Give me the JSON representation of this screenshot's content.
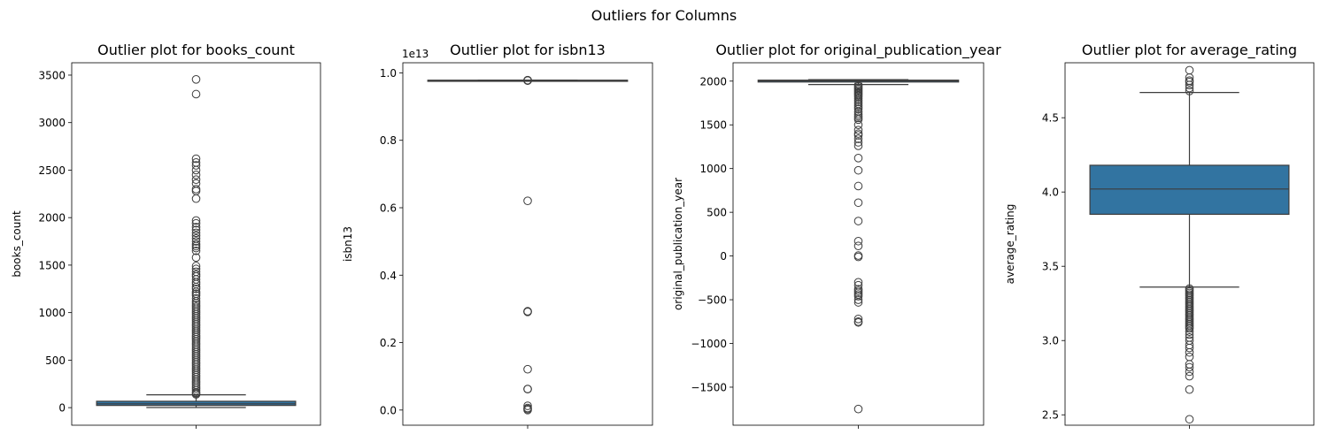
{
  "suptitle": "Outliers for Columns",
  "colors": {
    "box_fill": "#3274a1",
    "line": "#3d3d3d",
    "frame": "#000000"
  },
  "chart_data": [
    {
      "type": "box",
      "title": "Outlier plot for books_count",
      "ylabel": "books_count",
      "ylim": [
        -185,
        3630
      ],
      "yticks": [
        0,
        500,
        1000,
        1500,
        2000,
        2500,
        3000,
        3500
      ],
      "ytick_labels": [
        "0",
        "500",
        "1000",
        "1500",
        "2000",
        "2500",
        "3000",
        "3500"
      ],
      "offset_text": "",
      "box": {
        "whisker_low": 1,
        "q1": 23,
        "median": 40,
        "q3": 67,
        "whisker_high": 135
      },
      "outliers": [
        3455,
        3300,
        2620,
        2580,
        2550,
        2500,
        2450,
        2400,
        2360,
        2300,
        2280,
        2200,
        1970,
        1940,
        1900,
        1870,
        1840,
        1810,
        1780,
        1750,
        1720,
        1700,
        1680,
        1650,
        1580,
        1490,
        1460,
        1430,
        1400,
        1380,
        1350,
        1320,
        1300,
        1270,
        1250,
        1220,
        1200,
        1180,
        1150,
        1120,
        1100,
        1080,
        1060,
        1040,
        1020,
        1000,
        980,
        960,
        940,
        920,
        900,
        880,
        860,
        840,
        820,
        800,
        780,
        760,
        740,
        720,
        700,
        680,
        660,
        640,
        620,
        600,
        580,
        560,
        540,
        520,
        500,
        480,
        460,
        440,
        420,
        400,
        380,
        360,
        340,
        320,
        300,
        280,
        260,
        240,
        220,
        200,
        180,
        160,
        150,
        140
      ]
    },
    {
      "type": "box",
      "title": "Outlier plot for isbn13",
      "ylabel": "isbn13",
      "ylim": [
        -0.045,
        1.03
      ],
      "yticks": [
        0.0,
        0.2,
        0.4,
        0.6,
        0.8,
        1.0
      ],
      "ytick_labels": [
        "0.0",
        "0.2",
        "0.4",
        "0.6",
        "0.8",
        "1.0"
      ],
      "offset_text": "1e13",
      "box": {
        "whisker_low": 0.978,
        "q1": 0.978,
        "median": 0.978,
        "q3": 0.9781,
        "whisker_high": 0.9781
      },
      "outliers": [
        0.9785,
        0.978,
        0.9775,
        0.977,
        0.6205,
        0.293,
        0.292,
        0.291,
        0.121,
        0.0625,
        0.062,
        0.0125,
        0.006,
        0.003,
        0.0
      ]
    },
    {
      "type": "box",
      "title": "Outlier plot for original_publication_year",
      "ylabel": "original_publication_year",
      "ylim": [
        -1935,
        2210
      ],
      "yticks": [
        -1500,
        -1000,
        -500,
        0,
        500,
        1000,
        1500,
        2000
      ],
      "ytick_labels": [
        "−1500",
        "−1000",
        "−500",
        "0",
        "500",
        "1000",
        "1500",
        "2000"
      ],
      "offset_text": "",
      "box": {
        "whisker_low": 1961,
        "q1": 1990,
        "median": 2004,
        "q3": 2011,
        "whisker_high": 2017
      },
      "outliers": [
        1955,
        1940,
        1925,
        1910,
        1895,
        1880,
        1865,
        1850,
        1835,
        1820,
        1800,
        1780,
        1760,
        1740,
        1720,
        1700,
        1680,
        1650,
        1620,
        1600,
        1580,
        1560,
        1500,
        1440,
        1400,
        1380,
        1340,
        1300,
        1260,
        1120,
        980,
        800,
        610,
        400,
        170,
        115,
        5,
        -10,
        -300,
        -335,
        -380,
        -400,
        -420,
        -440,
        -460,
        -500,
        -530,
        -720,
        -750,
        -760,
        -1750
      ]
    },
    {
      "type": "box",
      "title": "Outlier plot for average_rating",
      "ylabel": "average_rating",
      "ylim": [
        2.43,
        4.87
      ],
      "yticks": [
        2.5,
        3.0,
        3.5,
        4.0,
        4.5
      ],
      "ytick_labels": [
        "2.5",
        "3.0",
        "3.5",
        "4.0",
        "4.5"
      ],
      "offset_text": "",
      "box": {
        "whisker_low": 3.36,
        "q1": 3.85,
        "median": 4.02,
        "q3": 4.18,
        "whisker_high": 4.67
      },
      "outliers": [
        4.82,
        4.77,
        4.75,
        4.74,
        4.72,
        4.7,
        4.68,
        3.35,
        3.34,
        3.33,
        3.32,
        3.31,
        3.3,
        3.29,
        3.28,
        3.27,
        3.26,
        3.25,
        3.24,
        3.23,
        3.22,
        3.21,
        3.2,
        3.19,
        3.18,
        3.17,
        3.16,
        3.15,
        3.14,
        3.13,
        3.12,
        3.11,
        3.1,
        3.09,
        3.08,
        3.06,
        3.04,
        3.02,
        3.0,
        2.97,
        2.95,
        2.92,
        2.89,
        2.84,
        2.82,
        2.79,
        2.76,
        2.67,
        2.47
      ]
    }
  ]
}
